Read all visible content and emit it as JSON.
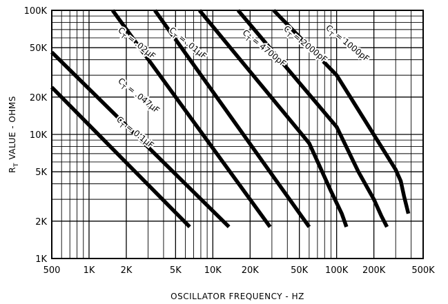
{
  "chart_data": {
    "type": "line",
    "xlabel": "OSCILLATOR FREQUENCY - HZ",
    "ylabel_main": "R",
    "ylabel_sub": "T",
    "ylabel_rest": " VALUE - OHMS",
    "x_scale": "log",
    "y_scale": "log",
    "xlim": [
      500,
      500000
    ],
    "ylim": [
      1000,
      100000
    ],
    "grid": true,
    "x_ticks": [
      {
        "value": 500,
        "label": "500"
      },
      {
        "value": 1000,
        "label": "1K"
      },
      {
        "value": 2000,
        "label": "2K"
      },
      {
        "value": 5000,
        "label": "5K"
      },
      {
        "value": 10000,
        "label": "10K"
      },
      {
        "value": 20000,
        "label": "20K"
      },
      {
        "value": 50000,
        "label": "50K"
      },
      {
        "value": 100000,
        "label": "100K"
      },
      {
        "value": 200000,
        "label": "200K"
      },
      {
        "value": 500000,
        "label": "500K"
      }
    ],
    "y_ticks": [
      {
        "value": 1000,
        "label": "1K"
      },
      {
        "value": 2000,
        "label": "2K"
      },
      {
        "value": 5000,
        "label": "5K"
      },
      {
        "value": 10000,
        "label": "10K"
      },
      {
        "value": 20000,
        "label": "20K"
      },
      {
        "value": 50000,
        "label": "50K"
      },
      {
        "value": 100000,
        "label": "100K"
      }
    ],
    "series": [
      {
        "name": "CT = 1000pF",
        "prefix": "C",
        "sub": "T",
        "suffix": " = 1000pF",
        "label_at": [
          81000,
          71000
        ],
        "angle": 39,
        "points": [
          [
            31000,
            100000
          ],
          [
            100000,
            30000
          ],
          [
            300000,
            5200
          ],
          [
            330000,
            4200
          ],
          [
            350000,
            3200
          ],
          [
            380000,
            2300
          ]
        ]
      },
      {
        "name": "CT = 2000pF",
        "prefix": "C",
        "sub": "T",
        "suffix": " = 2000pF",
        "label_at": [
          37000,
          70000
        ],
        "angle": 39,
        "points": [
          [
            16000,
            100000
          ],
          [
            100000,
            11500
          ],
          [
            150000,
            5000
          ],
          [
            200000,
            3000
          ],
          [
            230000,
            2200
          ],
          [
            255000,
            1800
          ]
        ]
      },
      {
        "name": "CT = 4700pF",
        "prefix": "C",
        "sub": "T",
        "suffix": " = 4700pF",
        "label_at": [
          17200,
          65000
        ],
        "angle": 39,
        "points": [
          [
            7800,
            100000
          ],
          [
            60000,
            8500
          ],
          [
            90000,
            3500
          ],
          [
            110000,
            2300
          ],
          [
            120000,
            1800
          ]
        ]
      },
      {
        "name": "CT = .01µF",
        "prefix": "C",
        "sub": "T",
        "suffix": " = .01µF",
        "label_at": [
          4400,
          68000
        ],
        "angle": 39,
        "points": [
          [
            3400,
            100000
          ],
          [
            60000,
            1800
          ]
        ]
      },
      {
        "name": "CT = .02µF",
        "prefix": "C",
        "sub": "T",
        "suffix": " = .02µF",
        "label_at": [
          1700,
          68000
        ],
        "angle": 39,
        "points": [
          [
            1550,
            100000
          ],
          [
            29000,
            1800
          ]
        ]
      },
      {
        "name": "CT = .047µF",
        "prefix": "C",
        "sub": "T",
        "suffix": " = .047µF",
        "label_at": [
          1700,
          26500
        ],
        "angle": 39,
        "points": [
          [
            500,
            46000
          ],
          [
            13500,
            1800
          ]
        ]
      },
      {
        "name": "CT = 0.1µF",
        "prefix": "C",
        "sub": "T",
        "suffix": " = 0.1µF",
        "label_at": [
          1650,
          13000
        ],
        "angle": 39,
        "points": [
          [
            500,
            24000
          ],
          [
            6500,
            1800
          ]
        ]
      }
    ]
  }
}
